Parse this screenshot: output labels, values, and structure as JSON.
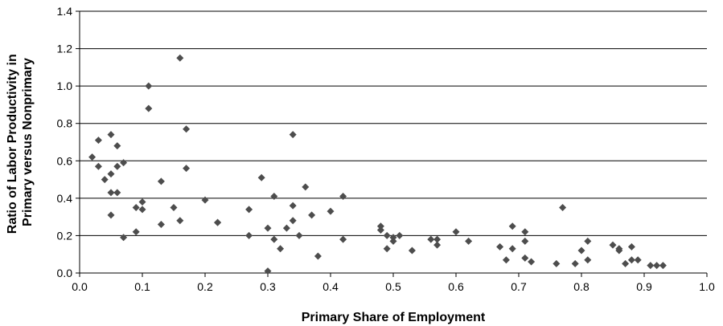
{
  "chart_data": {
    "type": "scatter",
    "title": "",
    "xlabel": "Primary Share of Employment",
    "ylabel_lines": [
      "Ratio of Labor Productivity in",
      "Primary versus Nonprimary"
    ],
    "xlim": [
      0.0,
      1.0
    ],
    "ylim": [
      0.0,
      1.4
    ],
    "x_ticks": [
      "0.0",
      "0.1",
      "0.2",
      "0.3",
      "0.4",
      "0.5",
      "0.6",
      "0.7",
      "0.8",
      "0.9",
      "1.0"
    ],
    "y_ticks": [
      "0.0",
      "0.2",
      "0.4",
      "0.6",
      "0.8",
      "1.0",
      "1.2",
      "1.4"
    ],
    "grid": "horizontal",
    "marker": "diamond",
    "marker_color": "#4d4d4d",
    "points": [
      [
        0.02,
        0.62
      ],
      [
        0.03,
        0.71
      ],
      [
        0.03,
        0.57
      ],
      [
        0.04,
        0.5
      ],
      [
        0.05,
        0.74
      ],
      [
        0.05,
        0.53
      ],
      [
        0.05,
        0.43
      ],
      [
        0.05,
        0.31
      ],
      [
        0.06,
        0.68
      ],
      [
        0.06,
        0.57
      ],
      [
        0.06,
        0.43
      ],
      [
        0.07,
        0.59
      ],
      [
        0.07,
        0.19
      ],
      [
        0.09,
        0.35
      ],
      [
        0.09,
        0.22
      ],
      [
        0.1,
        0.38
      ],
      [
        0.1,
        0.34
      ],
      [
        0.11,
        0.88
      ],
      [
        0.11,
        1.0
      ],
      [
        0.13,
        0.49
      ],
      [
        0.13,
        0.26
      ],
      [
        0.15,
        0.35
      ],
      [
        0.16,
        1.15
      ],
      [
        0.16,
        0.28
      ],
      [
        0.17,
        0.56
      ],
      [
        0.17,
        0.77
      ],
      [
        0.2,
        0.39
      ],
      [
        0.22,
        0.27
      ],
      [
        0.22,
        0.27
      ],
      [
        0.27,
        0.34
      ],
      [
        0.27,
        0.2
      ],
      [
        0.29,
        0.51
      ],
      [
        0.3,
        0.24
      ],
      [
        0.3,
        0.01
      ],
      [
        0.31,
        0.41
      ],
      [
        0.31,
        0.18
      ],
      [
        0.32,
        0.13
      ],
      [
        0.33,
        0.24
      ],
      [
        0.34,
        0.74
      ],
      [
        0.34,
        0.36
      ],
      [
        0.34,
        0.28
      ],
      [
        0.35,
        0.2
      ],
      [
        0.36,
        0.46
      ],
      [
        0.37,
        0.31
      ],
      [
        0.38,
        0.09
      ],
      [
        0.4,
        0.33
      ],
      [
        0.42,
        0.41
      ],
      [
        0.42,
        0.18
      ],
      [
        0.48,
        0.25
      ],
      [
        0.48,
        0.23
      ],
      [
        0.49,
        0.2
      ],
      [
        0.49,
        0.13
      ],
      [
        0.5,
        0.17
      ],
      [
        0.5,
        0.19
      ],
      [
        0.51,
        0.2
      ],
      [
        0.53,
        0.12
      ],
      [
        0.56,
        0.18
      ],
      [
        0.57,
        0.18
      ],
      [
        0.57,
        0.15
      ],
      [
        0.6,
        0.22
      ],
      [
        0.62,
        0.17
      ],
      [
        0.67,
        0.14
      ],
      [
        0.68,
        0.07
      ],
      [
        0.69,
        0.25
      ],
      [
        0.69,
        0.13
      ],
      [
        0.71,
        0.17
      ],
      [
        0.71,
        0.22
      ],
      [
        0.71,
        0.08
      ],
      [
        0.72,
        0.06
      ],
      [
        0.76,
        0.05
      ],
      [
        0.77,
        0.35
      ],
      [
        0.79,
        0.05
      ],
      [
        0.8,
        0.12
      ],
      [
        0.81,
        0.17
      ],
      [
        0.81,
        0.07
      ],
      [
        0.85,
        0.15
      ],
      [
        0.86,
        0.13
      ],
      [
        0.86,
        0.12
      ],
      [
        0.87,
        0.05
      ],
      [
        0.88,
        0.07
      ],
      [
        0.88,
        0.14
      ],
      [
        0.89,
        0.07
      ],
      [
        0.91,
        0.04
      ],
      [
        0.92,
        0.04
      ],
      [
        0.93,
        0.04
      ]
    ]
  }
}
